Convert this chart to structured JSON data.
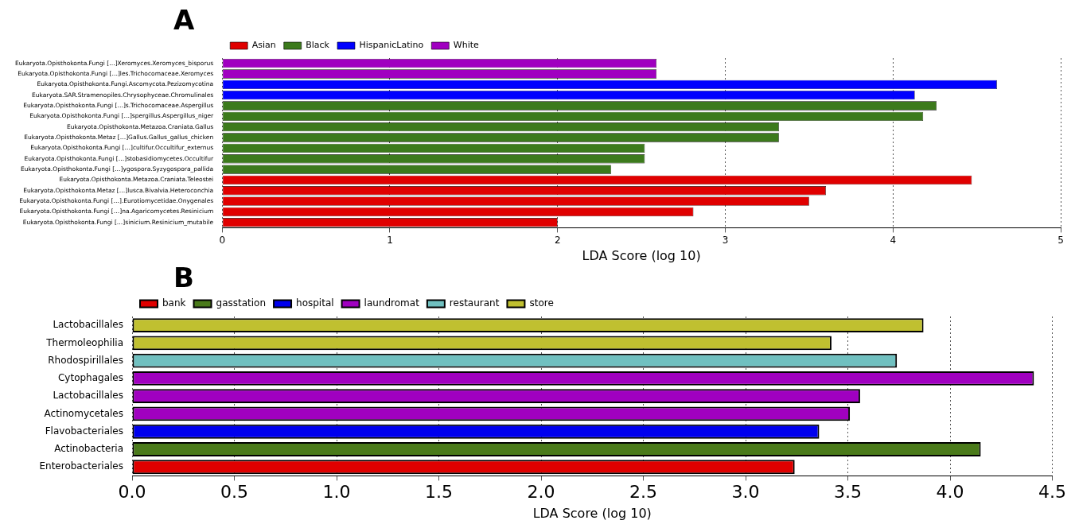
{
  "chart_data": [
    {
      "type": "bar",
      "title": "A",
      "orientation": "horizontal",
      "xlabel": "LDA Score (log 10)",
      "categories": [
        "Eukaryota.Opisthokonta.Fungi […]Xeromyces.Xeromyces_bisporus",
        "Eukaryota.Opisthokonta.Fungi […]les.Trichocomaceae.Xeromyces",
        "Eukaryota.Opisthokonta.Fungi.Ascomycota.Pezizomycotina",
        "Eukaryota.SAR.Stramenopiles.Chrysophyceae.Chromulinales",
        "Eukaryota.Opisthokonta.Fungi […]s.Trichocomaceae.Aspergillus",
        "Eukaryota.Opisthokonta.Fungi […]spergillus.Aspergillus_niger",
        "Eukaryota.Opisthokonta.Metazoa.Craniata.Gallus",
        "Eukaryota.Opisthokonta.Metaz […]Gallus.Gallus_gallus_chicken",
        "Eukaryota.Opisthokonta.Fungi […]cultifur.Occultifur_externus",
        "Eukaryota.Opisthokonta.Fungi […]stobasidiomycetes.Occultifur",
        "Eukaryota.Opisthokonta.Fungi […]ygospora.Syzygospora_pallida",
        "Eukaryota.Opisthokonta.Metazoa.Craniata.Teleostei",
        "Eukaryota.Opisthokonta.Metaz […]lusca.Bivalvia.Heteroconchia",
        "Eukaryota.Opisthokonta.Fungi […].Eurotiomycetidae.Onygenales",
        "Eukaryota.Opisthokonta.Fungi […]na.Agaricomycetes.Resinicium",
        "Eukaryota.Opisthokonta.Fungi […]sinicium.Resinicium_mutabile"
      ],
      "series": [
        {
          "name": "Asian",
          "color": "#e00000",
          "values": [
            null,
            null,
            null,
            null,
            null,
            null,
            null,
            null,
            null,
            null,
            null,
            4.47,
            3.6,
            3.5,
            2.81,
            2.0
          ]
        },
        {
          "name": "Black",
          "color": "#3c7a1c",
          "values": [
            null,
            null,
            null,
            null,
            4.26,
            4.18,
            3.32,
            3.32,
            2.52,
            2.52,
            2.32,
            null,
            null,
            null,
            null,
            null
          ]
        },
        {
          "name": "HispanicLatino",
          "color": "#0000ff",
          "values": [
            null,
            null,
            4.62,
            4.13,
            null,
            null,
            null,
            null,
            null,
            null,
            null,
            null,
            null,
            null,
            null,
            null
          ]
        },
        {
          "name": "White",
          "color": "#a000c0",
          "values": [
            2.59,
            2.59,
            null,
            null,
            null,
            null,
            null,
            null,
            null,
            null,
            null,
            null,
            null,
            null,
            null,
            null
          ]
        }
      ],
      "xlim": [
        0,
        5
      ],
      "xticks": [
        0,
        1,
        2,
        3,
        4,
        5
      ],
      "grid": "x",
      "legend": "top left"
    },
    {
      "type": "bar",
      "title": "B",
      "orientation": "horizontal",
      "xlabel": "LDA Score (log 10)",
      "categories": [
        "Lactobacillales",
        "Thermoleophilia",
        "Rhodospirillales",
        "Cytophagales",
        "Lactobacillales",
        "Actinomycetales",
        "Flavobacteriales",
        "Actinobacteria",
        "Enterobacteriales"
      ],
      "series": [
        {
          "name": "bank",
          "color": "#e00000",
          "values": [
            null,
            null,
            null,
            null,
            null,
            null,
            null,
            null,
            3.24
          ]
        },
        {
          "name": "gasstation",
          "color": "#4a7a1a",
          "values": [
            null,
            null,
            null,
            null,
            null,
            null,
            null,
            4.15,
            null
          ]
        },
        {
          "name": "hospital",
          "color": "#0000ee",
          "values": [
            null,
            null,
            null,
            null,
            null,
            null,
            3.36,
            null,
            null
          ]
        },
        {
          "name": "laundromat",
          "color": "#a000c0",
          "values": [
            null,
            null,
            null,
            4.41,
            3.56,
            3.51,
            null,
            null,
            null
          ]
        },
        {
          "name": "restaurant",
          "color": "#70c0c0",
          "values": [
            null,
            null,
            3.74,
            null,
            null,
            null,
            null,
            null,
            null
          ]
        },
        {
          "name": "store",
          "color": "#c0c030",
          "values": [
            3.87,
            3.42,
            null,
            null,
            null,
            null,
            null,
            null,
            null
          ]
        }
      ],
      "xlim": [
        0,
        4.5
      ],
      "xticks": [
        {
          "value": 0,
          "label": "0.0"
        },
        {
          "value": 0.5,
          "label": "0.5"
        },
        {
          "value": 1,
          "label": "1.0"
        },
        {
          "value": 1.5,
          "label": "1.5"
        },
        {
          "value": 2,
          "label": "2.0"
        },
        {
          "value": 2.5,
          "label": "2.5"
        },
        {
          "value": 3,
          "label": "3.0"
        },
        {
          "value": 3.5,
          "label": "3.5"
        },
        {
          "value": 4,
          "label": "4.0"
        },
        {
          "value": 4.5,
          "label": "4.5"
        }
      ],
      "grid": "x",
      "legend": "top left"
    }
  ]
}
